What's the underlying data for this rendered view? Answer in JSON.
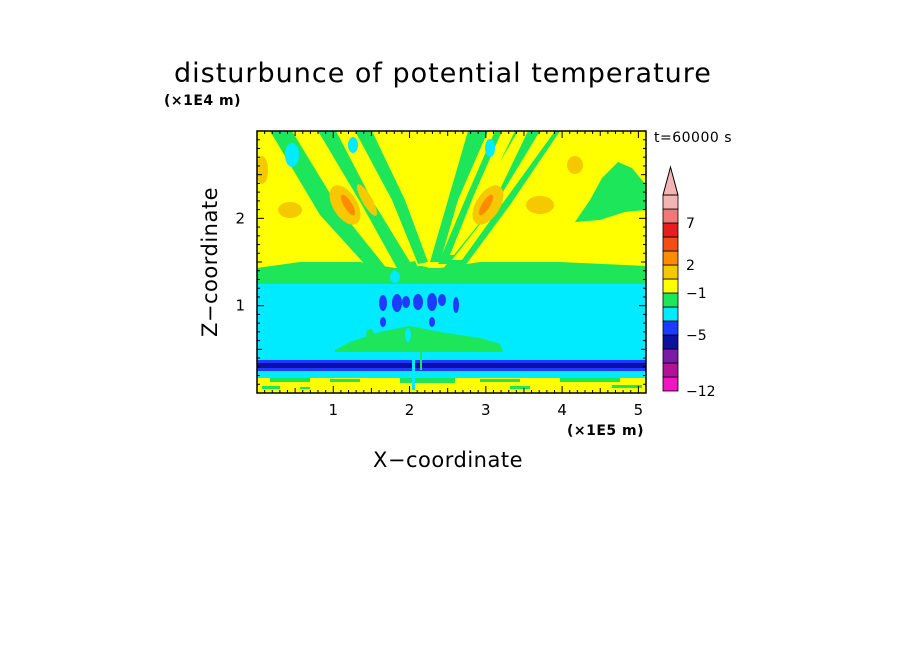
{
  "chart_data": {
    "type": "heatmap",
    "title": "disturbunce of potential temperature",
    "time_label": "t=60000 s",
    "xlabel": "X−coordinate",
    "ylabel": "Z−coordinate",
    "x_unit": "(×1E5 m)",
    "y_unit": "(×1E4 m)",
    "xlim": [
      0,
      5.1
    ],
    "ylim": [
      0,
      3.0
    ],
    "x_ticks": [
      {
        "value": 1,
        "label": "1"
      },
      {
        "value": 2,
        "label": "2"
      },
      {
        "value": 3,
        "label": "3"
      },
      {
        "value": 4,
        "label": "4"
      },
      {
        "value": 5,
        "label": "5"
      }
    ],
    "y_ticks": [
      {
        "value": 1,
        "label": "1"
      },
      {
        "value": 2,
        "label": "2"
      }
    ],
    "colorbar": {
      "colors": [
        "#f016c8",
        "#b4119b",
        "#7a1aa8",
        "#0f0fa0",
        "#1e3cff",
        "#00ebff",
        "#1ee65a",
        "#ffff00",
        "#f5c800",
        "#ff8c00",
        "#f05014",
        "#e61e1e",
        "#f07878",
        "#f5b4b4"
      ],
      "labels": [
        {
          "value": -12,
          "text": "−12"
        },
        {
          "value": -5,
          "text": "−5"
        },
        {
          "value": -1,
          "text": "−1"
        },
        {
          "value": 2,
          "text": "2"
        },
        {
          "value": 7,
          "text": "7"
        }
      ],
      "extend": "max"
    }
  }
}
